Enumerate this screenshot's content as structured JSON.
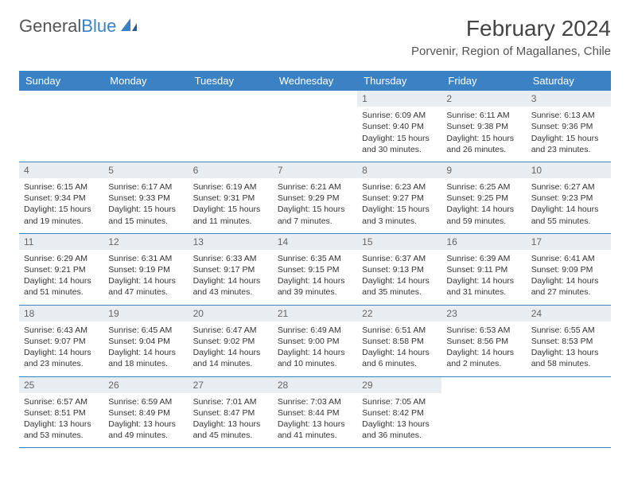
{
  "logo": {
    "word1": "General",
    "word2": "Blue"
  },
  "title": "February 2024",
  "location": "Porvenir, Region of Magallanes, Chile",
  "colors": {
    "header_bg": "#3b82c4",
    "header_text": "#ffffff",
    "daynum_bg": "#e8edf2",
    "daynum_text": "#666666",
    "border": "#3b82c4",
    "body_text": "#333333",
    "logo_gray": "#555555",
    "logo_blue": "#3b82c4"
  },
  "dayHeaders": [
    "Sunday",
    "Monday",
    "Tuesday",
    "Wednesday",
    "Thursday",
    "Friday",
    "Saturday"
  ],
  "weeks": [
    [
      null,
      null,
      null,
      null,
      {
        "n": "1",
        "sunrise": "Sunrise: 6:09 AM",
        "sunset": "Sunset: 9:40 PM",
        "daylight": "Daylight: 15 hours and 30 minutes."
      },
      {
        "n": "2",
        "sunrise": "Sunrise: 6:11 AM",
        "sunset": "Sunset: 9:38 PM",
        "daylight": "Daylight: 15 hours and 26 minutes."
      },
      {
        "n": "3",
        "sunrise": "Sunrise: 6:13 AM",
        "sunset": "Sunset: 9:36 PM",
        "daylight": "Daylight: 15 hours and 23 minutes."
      }
    ],
    [
      {
        "n": "4",
        "sunrise": "Sunrise: 6:15 AM",
        "sunset": "Sunset: 9:34 PM",
        "daylight": "Daylight: 15 hours and 19 minutes."
      },
      {
        "n": "5",
        "sunrise": "Sunrise: 6:17 AM",
        "sunset": "Sunset: 9:33 PM",
        "daylight": "Daylight: 15 hours and 15 minutes."
      },
      {
        "n": "6",
        "sunrise": "Sunrise: 6:19 AM",
        "sunset": "Sunset: 9:31 PM",
        "daylight": "Daylight: 15 hours and 11 minutes."
      },
      {
        "n": "7",
        "sunrise": "Sunrise: 6:21 AM",
        "sunset": "Sunset: 9:29 PM",
        "daylight": "Daylight: 15 hours and 7 minutes."
      },
      {
        "n": "8",
        "sunrise": "Sunrise: 6:23 AM",
        "sunset": "Sunset: 9:27 PM",
        "daylight": "Daylight: 15 hours and 3 minutes."
      },
      {
        "n": "9",
        "sunrise": "Sunrise: 6:25 AM",
        "sunset": "Sunset: 9:25 PM",
        "daylight": "Daylight: 14 hours and 59 minutes."
      },
      {
        "n": "10",
        "sunrise": "Sunrise: 6:27 AM",
        "sunset": "Sunset: 9:23 PM",
        "daylight": "Daylight: 14 hours and 55 minutes."
      }
    ],
    [
      {
        "n": "11",
        "sunrise": "Sunrise: 6:29 AM",
        "sunset": "Sunset: 9:21 PM",
        "daylight": "Daylight: 14 hours and 51 minutes."
      },
      {
        "n": "12",
        "sunrise": "Sunrise: 6:31 AM",
        "sunset": "Sunset: 9:19 PM",
        "daylight": "Daylight: 14 hours and 47 minutes."
      },
      {
        "n": "13",
        "sunrise": "Sunrise: 6:33 AM",
        "sunset": "Sunset: 9:17 PM",
        "daylight": "Daylight: 14 hours and 43 minutes."
      },
      {
        "n": "14",
        "sunrise": "Sunrise: 6:35 AM",
        "sunset": "Sunset: 9:15 PM",
        "daylight": "Daylight: 14 hours and 39 minutes."
      },
      {
        "n": "15",
        "sunrise": "Sunrise: 6:37 AM",
        "sunset": "Sunset: 9:13 PM",
        "daylight": "Daylight: 14 hours and 35 minutes."
      },
      {
        "n": "16",
        "sunrise": "Sunrise: 6:39 AM",
        "sunset": "Sunset: 9:11 PM",
        "daylight": "Daylight: 14 hours and 31 minutes."
      },
      {
        "n": "17",
        "sunrise": "Sunrise: 6:41 AM",
        "sunset": "Sunset: 9:09 PM",
        "daylight": "Daylight: 14 hours and 27 minutes."
      }
    ],
    [
      {
        "n": "18",
        "sunrise": "Sunrise: 6:43 AM",
        "sunset": "Sunset: 9:07 PM",
        "daylight": "Daylight: 14 hours and 23 minutes."
      },
      {
        "n": "19",
        "sunrise": "Sunrise: 6:45 AM",
        "sunset": "Sunset: 9:04 PM",
        "daylight": "Daylight: 14 hours and 18 minutes."
      },
      {
        "n": "20",
        "sunrise": "Sunrise: 6:47 AM",
        "sunset": "Sunset: 9:02 PM",
        "daylight": "Daylight: 14 hours and 14 minutes."
      },
      {
        "n": "21",
        "sunrise": "Sunrise: 6:49 AM",
        "sunset": "Sunset: 9:00 PM",
        "daylight": "Daylight: 14 hours and 10 minutes."
      },
      {
        "n": "22",
        "sunrise": "Sunrise: 6:51 AM",
        "sunset": "Sunset: 8:58 PM",
        "daylight": "Daylight: 14 hours and 6 minutes."
      },
      {
        "n": "23",
        "sunrise": "Sunrise: 6:53 AM",
        "sunset": "Sunset: 8:56 PM",
        "daylight": "Daylight: 14 hours and 2 minutes."
      },
      {
        "n": "24",
        "sunrise": "Sunrise: 6:55 AM",
        "sunset": "Sunset: 8:53 PM",
        "daylight": "Daylight: 13 hours and 58 minutes."
      }
    ],
    [
      {
        "n": "25",
        "sunrise": "Sunrise: 6:57 AM",
        "sunset": "Sunset: 8:51 PM",
        "daylight": "Daylight: 13 hours and 53 minutes."
      },
      {
        "n": "26",
        "sunrise": "Sunrise: 6:59 AM",
        "sunset": "Sunset: 8:49 PM",
        "daylight": "Daylight: 13 hours and 49 minutes."
      },
      {
        "n": "27",
        "sunrise": "Sunrise: 7:01 AM",
        "sunset": "Sunset: 8:47 PM",
        "daylight": "Daylight: 13 hours and 45 minutes."
      },
      {
        "n": "28",
        "sunrise": "Sunrise: 7:03 AM",
        "sunset": "Sunset: 8:44 PM",
        "daylight": "Daylight: 13 hours and 41 minutes."
      },
      {
        "n": "29",
        "sunrise": "Sunrise: 7:05 AM",
        "sunset": "Sunset: 8:42 PM",
        "daylight": "Daylight: 13 hours and 36 minutes."
      },
      null,
      null
    ]
  ]
}
